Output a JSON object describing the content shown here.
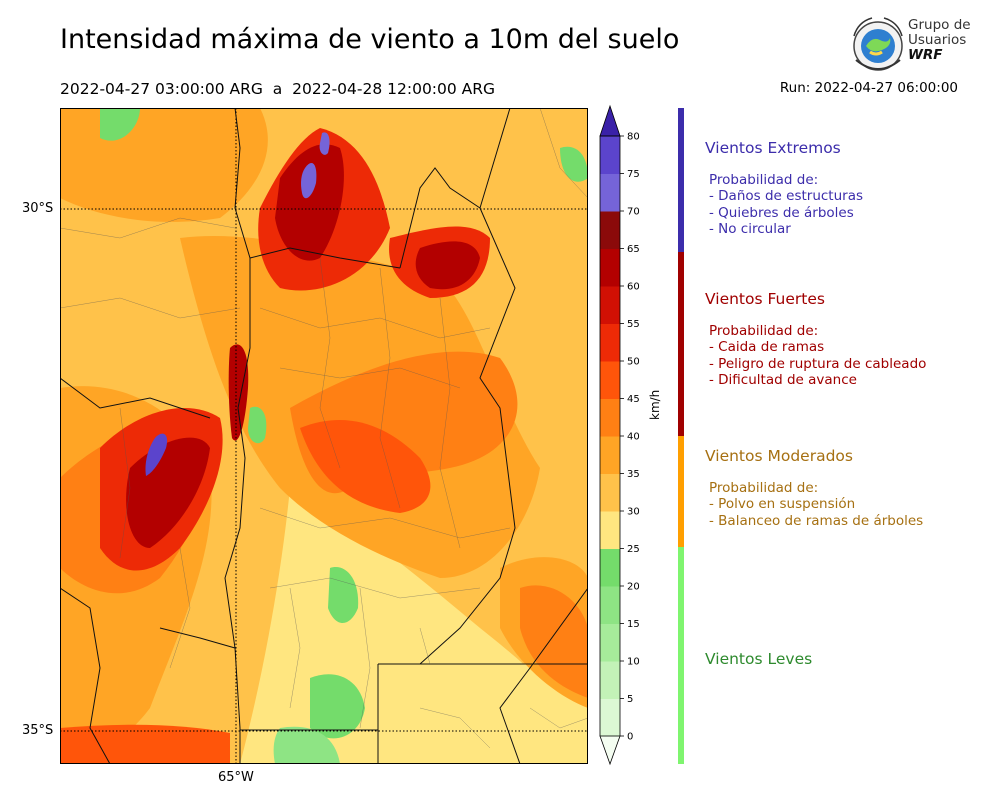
{
  "header": {
    "title": "Intensidad máxima de viento a 10m del suelo",
    "period": "2022-04-27 03:00:00 ARG  a  2022-04-28 12:00:00 ARG",
    "run": "Run: 2022-04-27 06:00:00"
  },
  "logo": {
    "line1": "Grupo de",
    "line2": "Usuarios",
    "line3": "WRF"
  },
  "map": {
    "lat_labels": [
      "30°S",
      "35°S"
    ],
    "lon_labels": [
      "65°W"
    ]
  },
  "colorbar": {
    "unit": "km/h",
    "ticks": [
      "0",
      "5",
      "10",
      "15",
      "20",
      "25",
      "30",
      "35",
      "40",
      "45",
      "50",
      "55",
      "60",
      "65",
      "70",
      "75",
      "80"
    ],
    "colors": [
      "#f4fdf1",
      "#dcf8d4",
      "#c3f2b7",
      "#a6ec9a",
      "#8ee484",
      "#74dc6b",
      "#ffe680",
      "#ffc24a",
      "#ffa525",
      "#ff8014",
      "#ff550a",
      "#ed2a06",
      "#d11004",
      "#b30000",
      "#8b0a0a",
      "#7564d8",
      "#5b44cc",
      "#4a2dbc"
    ],
    "extend_color": "#3a21a8"
  },
  "categories": [
    {
      "name": "Vientos Extremos",
      "color": "#3c2dab",
      "heading": "Probabilidad de:",
      "items": [
        "- Daños de estructuras",
        "- Quiebres de árboles",
        "- No circular"
      ]
    },
    {
      "name": "Vientos Fuertes",
      "color": "#a00000",
      "heading": "Probabilidad de:",
      "items": [
        "- Caida de ramas",
        "- Peligro de ruptura de cableado",
        "- Dificultad de avance"
      ]
    },
    {
      "name": "Vientos Moderados",
      "color": "#a67012",
      "heading": "Probabilidad de:",
      "items": [
        "- Polvo en suspensión",
        "- Balanceo de ramas de árboles"
      ]
    },
    {
      "name": "Vientos Leves",
      "color": "#2e8a2e"
    }
  ],
  "side_bar_colors": [
    "#3c2dab",
    "#a00000",
    "#ff9f00",
    "#7ff56f"
  ]
}
